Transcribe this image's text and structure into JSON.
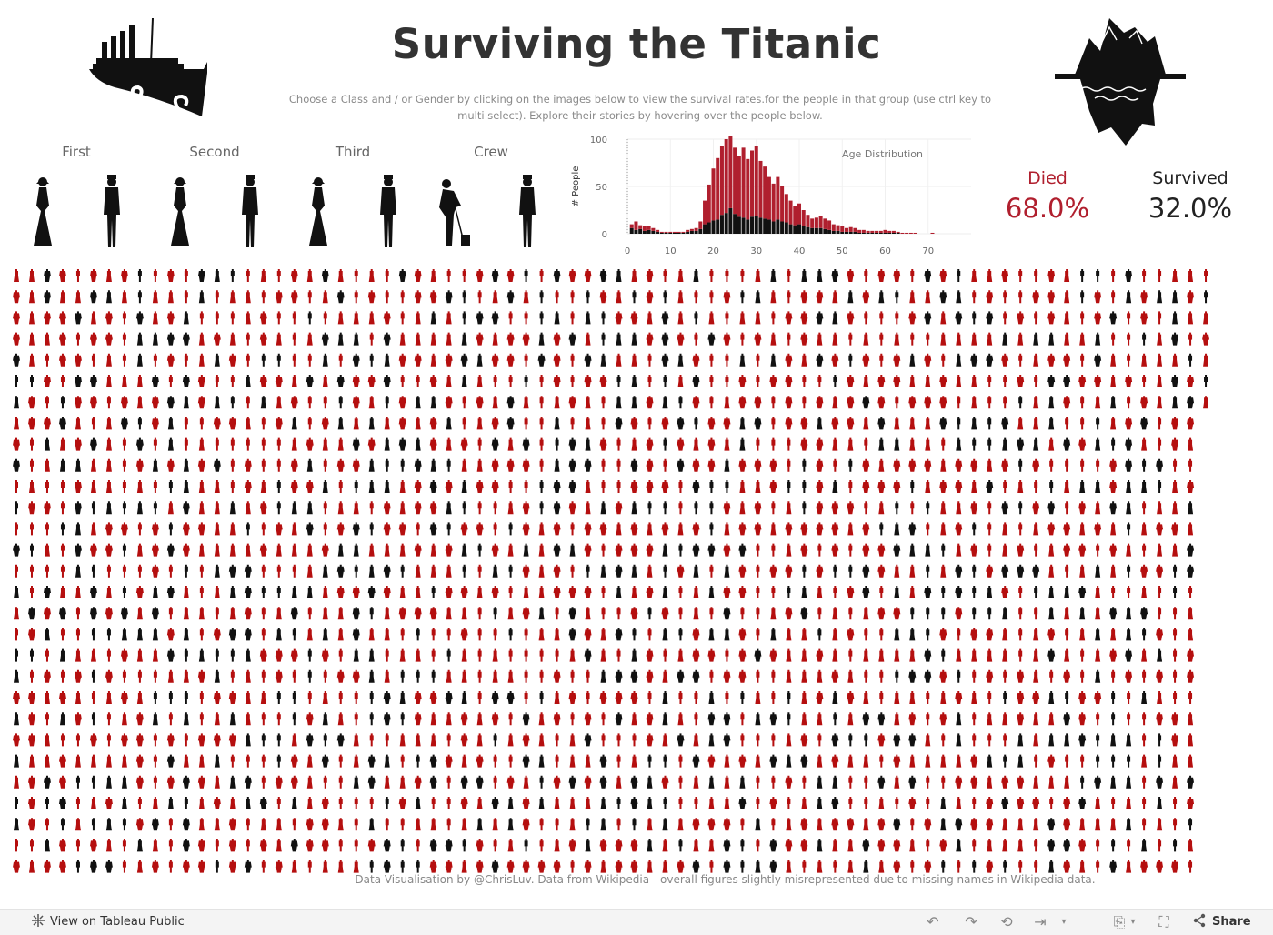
{
  "header": {
    "title": "Surviving the Titanic",
    "subtitle": "Choose a Class and / or Gender by clicking on the images below to view the survival rates.for the people in that group (use ctrl key to multi select). Explore their stories by hovering over the people below."
  },
  "filters": {
    "classes": [
      {
        "label": "First"
      },
      {
        "label": "Second"
      },
      {
        "label": "Third"
      },
      {
        "label": "Crew"
      }
    ]
  },
  "stats": {
    "died_label": "Died",
    "died_value": "68.0%",
    "survived_label": "Survived",
    "survived_value": "32.0%"
  },
  "colors": {
    "died": "#b01f2e",
    "survived": "#111111",
    "died_figure": "#b50f0f",
    "title": "#333333"
  },
  "chart_data": {
    "type": "bar",
    "title": "Age Distribution",
    "xlabel": "",
    "ylabel": "# People",
    "xlim": [
      0,
      80
    ],
    "ylim": [
      0,
      100
    ],
    "x_ticks": [
      0,
      10,
      20,
      30,
      40,
      50,
      60,
      70
    ],
    "y_ticks": [
      0,
      50,
      100
    ],
    "grid": true,
    "stacked": true,
    "x": [
      1,
      2,
      3,
      4,
      5,
      6,
      7,
      8,
      9,
      10,
      11,
      12,
      13,
      14,
      15,
      16,
      17,
      18,
      19,
      20,
      21,
      22,
      23,
      24,
      25,
      26,
      27,
      28,
      29,
      30,
      31,
      32,
      33,
      34,
      35,
      36,
      37,
      38,
      39,
      40,
      41,
      42,
      43,
      44,
      45,
      46,
      47,
      48,
      49,
      50,
      51,
      52,
      53,
      54,
      55,
      56,
      57,
      58,
      59,
      60,
      61,
      62,
      63,
      64,
      65,
      66,
      67,
      68,
      69,
      70,
      71,
      72,
      73,
      74
    ],
    "series": [
      {
        "name": "Survived",
        "color": "#111111",
        "values": [
          6,
          4,
          5,
          3,
          4,
          3,
          2,
          1,
          1,
          1,
          1,
          1,
          1,
          2,
          3,
          3,
          5,
          10,
          12,
          14,
          15,
          20,
          22,
          27,
          21,
          18,
          17,
          15,
          18,
          19,
          17,
          16,
          15,
          13,
          15,
          13,
          12,
          10,
          9,
          10,
          8,
          7,
          6,
          6,
          6,
          5,
          4,
          3,
          3,
          2,
          2,
          2,
          2,
          1,
          1,
          1,
          1,
          1,
          1,
          1,
          1,
          1,
          1,
          0,
          0,
          0,
          0,
          0,
          0,
          0,
          0,
          0,
          0,
          0
        ]
      },
      {
        "name": "Died",
        "color": "#b01f2e",
        "values": [
          4,
          9,
          4,
          5,
          4,
          3,
          2,
          1,
          1,
          1,
          1,
          1,
          1,
          2,
          2,
          3,
          8,
          25,
          40,
          55,
          65,
          73,
          78,
          76,
          70,
          64,
          74,
          64,
          70,
          74,
          60,
          55,
          45,
          40,
          45,
          37,
          30,
          25,
          20,
          22,
          17,
          13,
          10,
          11,
          13,
          11,
          10,
          7,
          6,
          6,
          4,
          5,
          4,
          3,
          3,
          2,
          2,
          2,
          2,
          3,
          2,
          2,
          1,
          1,
          1,
          1,
          1,
          0,
          0,
          0,
          1,
          0,
          0,
          0
        ]
      }
    ]
  },
  "people_grid": {
    "columns": 81,
    "rows": 29,
    "total_shown": 2240,
    "died_count": 1523,
    "survived_count": 717
  },
  "footer": {
    "note": "Data Visualisation by @ChrisLuv. Data from Wikipedia - overall figures slightly misrepresented due to missing names in Wikipedia data."
  },
  "toolbar": {
    "view_on_label": "View on Tableau Public",
    "share_label": "Share",
    "icons": [
      "undo-icon",
      "redo-icon",
      "revert-icon",
      "pause-icon",
      "download-icon",
      "fullscreen-icon",
      "share-icon"
    ]
  }
}
